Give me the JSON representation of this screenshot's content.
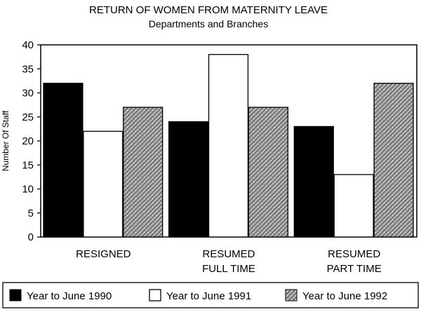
{
  "chart_data": {
    "type": "bar",
    "title": "RETURN OF WOMEN FROM MATERNITY LEAVE",
    "subtitle": "Departments and Branches",
    "xlabel": "",
    "ylabel": "Number Of Staff",
    "ylim": [
      0,
      40
    ],
    "yticks": [
      0,
      5,
      10,
      15,
      20,
      25,
      30,
      35,
      40
    ],
    "grid": false,
    "legend_position": "bottom",
    "categories": [
      [
        "RESIGNED"
      ],
      [
        "RESUMED",
        "FULL TIME"
      ],
      [
        "RESUMED",
        "PART TIME"
      ]
    ],
    "series": [
      {
        "name": "Year to June 1990",
        "values": [
          32,
          24,
          23
        ],
        "fill": "solid-black"
      },
      {
        "name": "Year to June 1991",
        "values": [
          22,
          38,
          13
        ],
        "fill": "white"
      },
      {
        "name": "Year to June 1992",
        "values": [
          27,
          27,
          32
        ],
        "fill": "gray-hatched"
      }
    ]
  }
}
